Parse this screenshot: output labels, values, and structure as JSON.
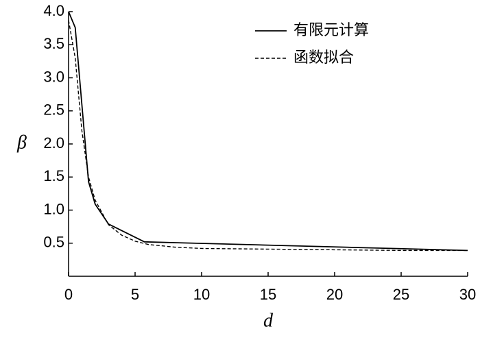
{
  "chart_data": {
    "type": "line",
    "x_label": "d",
    "y_label": "β",
    "xlim": [
      0,
      30
    ],
    "xticks": [
      0,
      5,
      10,
      15,
      20,
      25,
      30
    ],
    "ylim": [
      0,
      4
    ],
    "yticks": [
      0.5,
      {
        "value": 1,
        "label": "1.0"
      },
      1.5,
      {
        "value": 2,
        "label": "2.0"
      },
      2.5,
      {
        "value": 3,
        "label": "3.0"
      },
      3.5,
      {
        "value": 4,
        "label": "4.0"
      }
    ],
    "legend": "upper right",
    "series": [
      {
        "name": "有限元计算",
        "color": "#000000",
        "style": "solid",
        "x": [
          0,
          0.5,
          1.5,
          2,
          3,
          5.7,
          30
        ],
        "values": [
          4.0,
          3.76,
          1.43,
          1.09,
          0.79,
          0.52,
          0.39
        ]
      },
      {
        "name": "函数拟合",
        "color": "#000000",
        "style": "dashed",
        "x": [
          0,
          0.5,
          1,
          1.5,
          2,
          3,
          4,
          5,
          6,
          8,
          10,
          15,
          20,
          25,
          30
        ],
        "values": [
          3.87,
          3.3,
          2.2,
          1.5,
          1.15,
          0.78,
          0.62,
          0.53,
          0.48,
          0.44,
          0.42,
          0.41,
          0.4,
          0.39,
          0.39
        ]
      }
    ]
  }
}
